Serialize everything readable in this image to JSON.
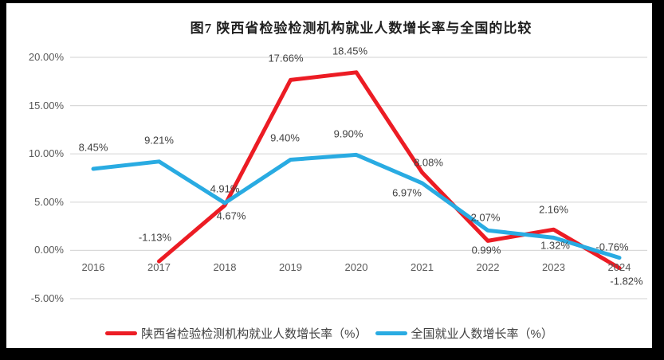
{
  "title": "图7 陕西省检验检测机构就业人数增长率与全国的比较",
  "colors": {
    "red": "#ec1c24",
    "blue": "#29abe2",
    "grid": "#d9d9d9",
    "frame": "#000000",
    "axis_text": "#595959",
    "label_text": "#404040"
  },
  "chart_data": {
    "type": "line",
    "categories": [
      "2016",
      "2017",
      "2018",
      "2019",
      "2020",
      "2021",
      "2022",
      "2023",
      "2024"
    ],
    "series": [
      {
        "name": "陕西省检验检测机构就业人数增长率（%）",
        "color_key": "red",
        "values": [
          null,
          -1.13,
          4.67,
          17.66,
          18.45,
          8.08,
          0.99,
          2.16,
          -1.82
        ],
        "labels": [
          "",
          "-1.13%",
          "4.67%",
          "17.66%",
          "18.45%",
          "8.08%",
          "0.99%",
          "2.16%",
          "-1.82%"
        ],
        "label_offsets": [
          [
            0,
            0
          ],
          [
            -5,
            -30
          ],
          [
            8,
            13
          ],
          [
            -6,
            -27
          ],
          [
            -8,
            -27
          ],
          [
            8,
            -13
          ],
          [
            -2,
            12
          ],
          [
            0,
            -25
          ],
          [
            9,
            16
          ]
        ]
      },
      {
        "name": "全国就业人数增长率（%）",
        "color_key": "blue",
        "values": [
          8.45,
          9.21,
          4.91,
          9.4,
          9.9,
          6.97,
          2.07,
          1.32,
          -0.76
        ],
        "labels": [
          "8.45%",
          "9.21%",
          "4.91%",
          "9.40%",
          "9.90%",
          "6.97%",
          "2.07%",
          "1.32%",
          "-0.76%"
        ],
        "label_offsets": [
          [
            0,
            -27
          ],
          [
            0,
            -27
          ],
          [
            0,
            -18
          ],
          [
            -7,
            -28
          ],
          [
            -10,
            -26
          ],
          [
            -19,
            12
          ],
          [
            -3,
            -16
          ],
          [
            2,
            10
          ],
          [
            -9,
            -14
          ]
        ]
      }
    ],
    "y_ticks": [
      "20.00%",
      "15.00%",
      "10.00%",
      "5.00%",
      "0.00%",
      "-5.00%"
    ],
    "y_tick_values": [
      20,
      15,
      10,
      5,
      0,
      -5
    ],
    "ylim": [
      -5,
      20
    ],
    "grid": true,
    "legend_position": "bottom"
  },
  "legend": {
    "items": [
      {
        "label": "陕西省检验检测机构就业人数增长率（%）",
        "color_key": "red"
      },
      {
        "label": "全国就业人数增长率（%）",
        "color_key": "blue"
      }
    ]
  }
}
